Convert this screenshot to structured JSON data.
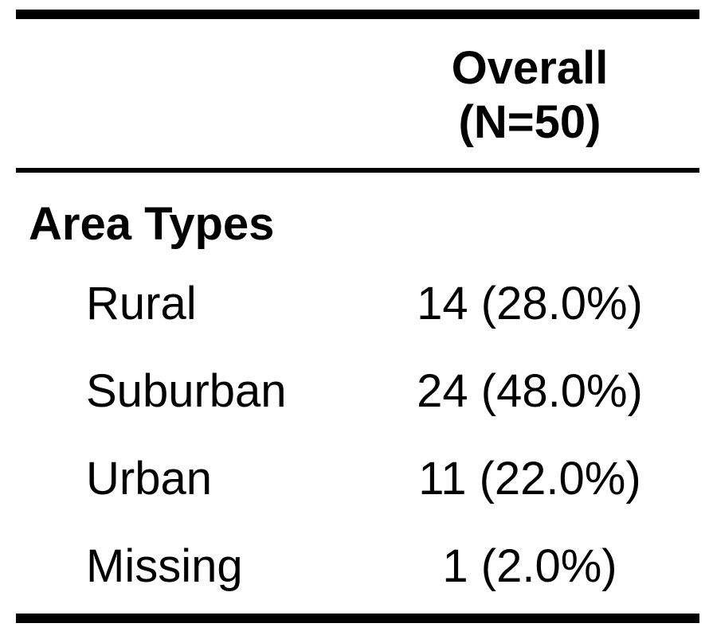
{
  "table": {
    "column_header": {
      "line1": "Overall",
      "line2": "(N=50)"
    },
    "group_label": "Area Types",
    "rows": [
      {
        "label": "Rural",
        "value": "14 (28.0%)"
      },
      {
        "label": "Suburban",
        "value": "24 (48.0%)"
      },
      {
        "label": "Urban",
        "value": "11 (22.0%)"
      },
      {
        "label": "Missing",
        "value": "1 (2.0%)"
      }
    ]
  }
}
